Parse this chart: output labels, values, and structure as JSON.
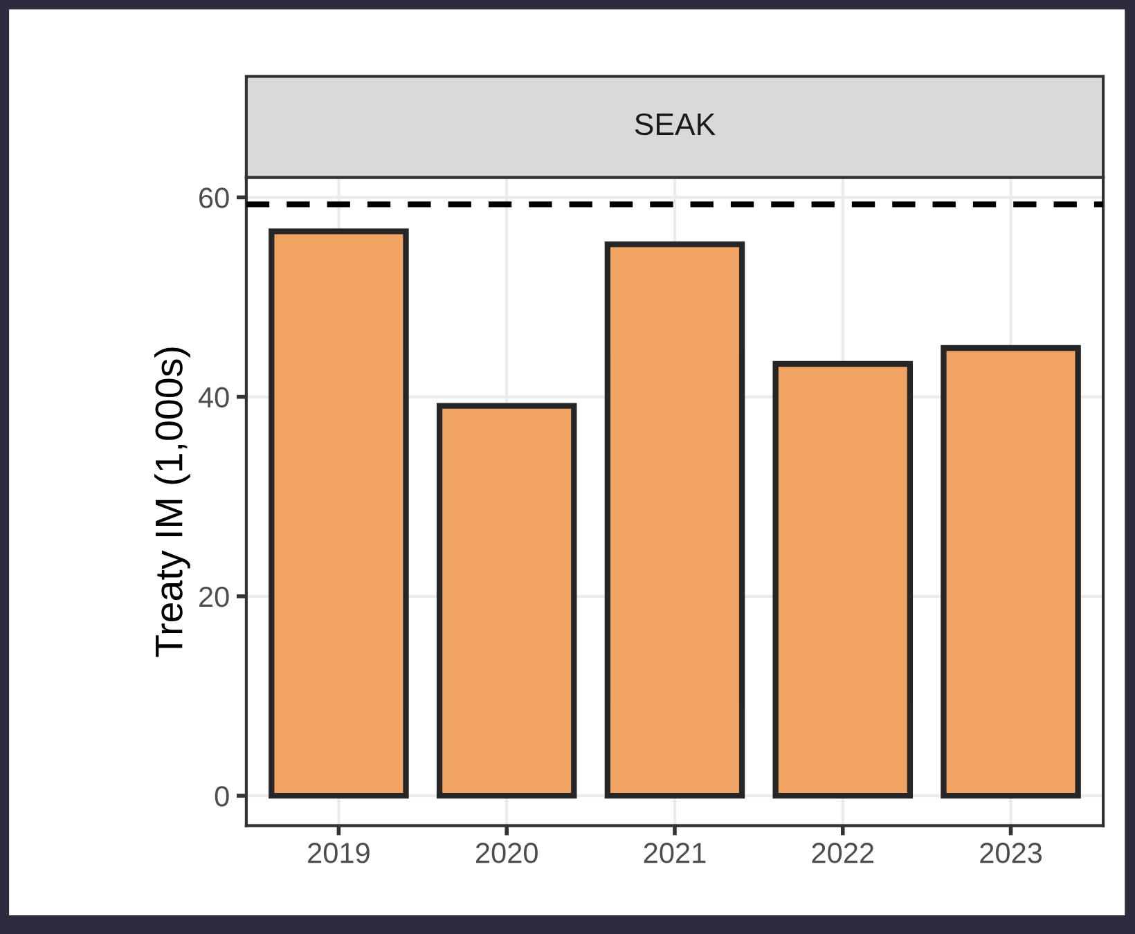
{
  "chart_data": {
    "type": "bar",
    "title": "SEAK",
    "ylabel": "Treaty IM (1,000s)",
    "categories": [
      "2019",
      "2020",
      "2021",
      "2022",
      "2023"
    ],
    "values": [
      56.6,
      39.1,
      55.3,
      43.3,
      44.9
    ],
    "color": "#f2a462",
    "ylim": [
      -3,
      62
    ],
    "yticks": [
      0,
      20,
      40,
      60
    ],
    "grid": true,
    "ref_lines": [
      {
        "axis": "y",
        "value": 59.3,
        "color": "#000000",
        "line_style": "dashed"
      }
    ]
  }
}
